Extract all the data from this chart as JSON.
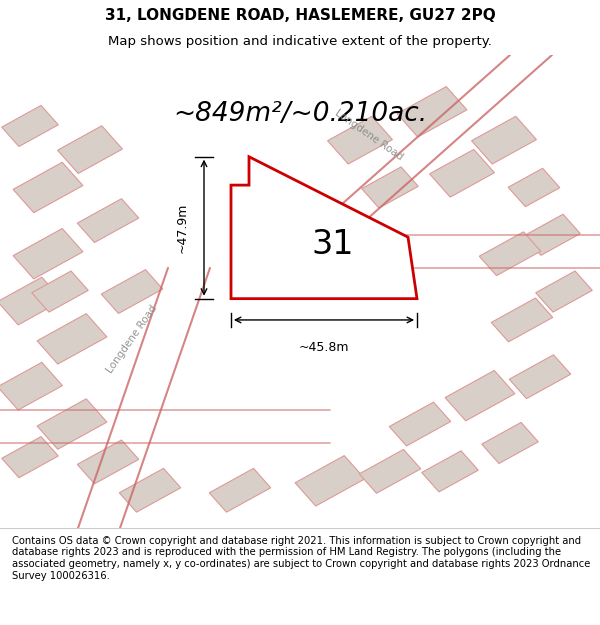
{
  "title": "31, LONGDENE ROAD, HASLEMERE, GU27 2PQ",
  "subtitle": "Map shows position and indicative extent of the property.",
  "area_text": "~849m²/~0.210ac.",
  "number_label": "31",
  "width_label": "~45.8m",
  "height_label": "~47.9m",
  "road_label": "Longdene Road",
  "footer_text": "Contains OS data © Crown copyright and database right 2021. This information is subject to Crown copyright and database rights 2023 and is reproduced with the permission of HM Land Registry. The polygons (including the associated geometry, namely x, y co-ordinates) are subject to Crown copyright and database rights 2023 Ordnance Survey 100026316.",
  "bg_color": "#f5f0eb",
  "map_bg": "#f5f0eb",
  "property_color": "#cc0000",
  "building_color": "#d0c8c0",
  "building_stroke": "#e08080",
  "title_fontsize": 11,
  "subtitle_fontsize": 9.5,
  "area_fontsize": 19,
  "footer_fontsize": 7.2
}
